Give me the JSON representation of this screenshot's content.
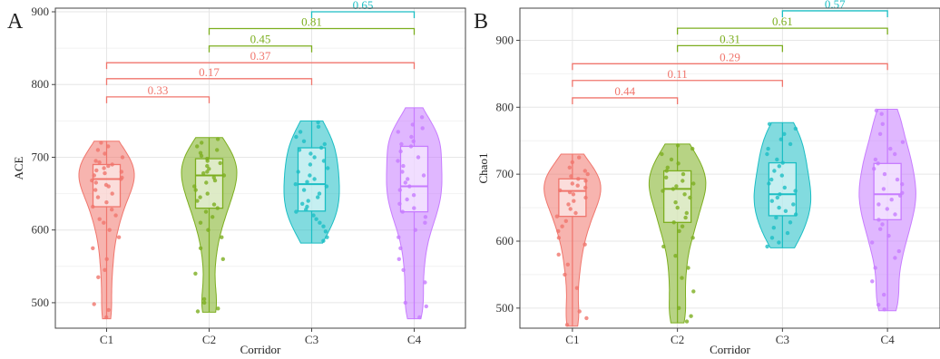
{
  "colors": {
    "C1": "#f0766d",
    "C2": "#7cae1f",
    "C3": "#1bbec4",
    "C4": "#c77cff",
    "grid": "#e6e6e6"
  },
  "chart_data": [
    {
      "type": "violin",
      "panel_label": "A",
      "xlabel": "Corridor",
      "ylabel": "ACE",
      "categories": [
        "C1",
        "C2",
        "C3",
        "C4"
      ],
      "ylim": [
        465,
        905
      ],
      "yticks": [
        500,
        600,
        700,
        800,
        900
      ],
      "grid": true,
      "series": [
        {
          "category": "C1",
          "min": 478,
          "q1": 632,
          "median": 670,
          "q3": 690,
          "max": 722,
          "points": [
            480,
            490,
            498,
            535,
            545,
            560,
            575,
            590,
            600,
            610,
            615,
            620,
            628,
            632,
            638,
            645,
            650,
            655,
            660,
            662,
            665,
            668,
            670,
            672,
            675,
            678,
            680,
            682,
            685,
            688,
            690,
            693,
            695,
            700,
            705,
            710,
            715,
            720
          ]
        },
        {
          "category": "C2",
          "min": 487,
          "q1": 630,
          "median": 675,
          "q3": 698,
          "max": 727,
          "points": [
            488,
            492,
            500,
            505,
            540,
            560,
            575,
            590,
            600,
            610,
            618,
            625,
            630,
            635,
            640,
            645,
            650,
            655,
            660,
            665,
            668,
            672,
            675,
            678,
            680,
            684,
            688,
            692,
            695,
            698,
            702,
            706,
            710,
            715,
            720,
            725
          ]
        },
        {
          "category": "C3",
          "min": 582,
          "q1": 626,
          "median": 663,
          "q3": 713,
          "max": 750,
          "points": [
            585,
            590,
            598,
            605,
            610,
            615,
            620,
            625,
            628,
            632,
            636,
            640,
            645,
            650,
            655,
            660,
            663,
            666,
            670,
            675,
            680,
            685,
            690,
            695,
            700,
            705,
            710,
            713,
            718,
            722,
            728,
            735,
            742,
            748
          ]
        },
        {
          "category": "C4",
          "min": 478,
          "q1": 625,
          "median": 660,
          "q3": 715,
          "max": 768,
          "points": [
            480,
            495,
            500,
            528,
            545,
            560,
            575,
            590,
            600,
            610,
            618,
            625,
            630,
            636,
            642,
            648,
            655,
            660,
            665,
            670,
            675,
            680,
            688,
            695,
            700,
            708,
            715,
            718,
            722,
            728,
            735,
            740,
            745,
            755
          ]
        }
      ],
      "comparisons": [
        {
          "from": "C1",
          "to": "C2",
          "label": "0.33",
          "y": 783,
          "color": "#f0766d"
        },
        {
          "from": "C1",
          "to": "C3",
          "label": "0.17",
          "y": 808,
          "color": "#f0766d"
        },
        {
          "from": "C1",
          "to": "C4",
          "label": "0.37",
          "y": 830,
          "color": "#f0766d"
        },
        {
          "from": "C2",
          "to": "C3",
          "label": "0.45",
          "y": 853,
          "color": "#7cae1f"
        },
        {
          "from": "C2",
          "to": "C4",
          "label": "0.81",
          "y": 877,
          "color": "#7cae1f"
        },
        {
          "from": "C3",
          "to": "C4",
          "label": "0.65",
          "y": 900,
          "color": "#1bbec4"
        }
      ]
    },
    {
      "type": "violin",
      "panel_label": "B",
      "xlabel": "Corridor",
      "ylabel": "Chao1",
      "categories": [
        "C1",
        "C2",
        "C3",
        "C4"
      ],
      "ylim": [
        470,
        948
      ],
      "yticks": [
        500,
        600,
        700,
        800,
        900
      ],
      "grid": true,
      "series": [
        {
          "category": "C1",
          "min": 473,
          "q1": 637,
          "median": 675,
          "q3": 693,
          "max": 730,
          "points": [
            475,
            485,
            495,
            530,
            550,
            565,
            580,
            595,
            605,
            615,
            622,
            630,
            637,
            642,
            648,
            655,
            660,
            665,
            670,
            673,
            676,
            680,
            683,
            686,
            690,
            693,
            697,
            700,
            705,
            710,
            718,
            725
          ]
        },
        {
          "category": "C2",
          "min": 478,
          "q1": 628,
          "median": 678,
          "q3": 705,
          "max": 745,
          "points": [
            480,
            488,
            500,
            525,
            545,
            560,
            578,
            592,
            605,
            615,
            622,
            628,
            635,
            642,
            650,
            658,
            665,
            670,
            675,
            678,
            682,
            686,
            690,
            695,
            700,
            705,
            710,
            716,
            722,
            730,
            738,
            743
          ]
        },
        {
          "category": "C3",
          "min": 590,
          "q1": 638,
          "median": 670,
          "q3": 717,
          "max": 777,
          "points": [
            592,
            598,
            605,
            612,
            620,
            628,
            635,
            640,
            645,
            650,
            655,
            660,
            665,
            670,
            675,
            680,
            686,
            692,
            698,
            705,
            712,
            717,
            722,
            730,
            738,
            745,
            752,
            760,
            768,
            775
          ]
        },
        {
          "category": "C4",
          "min": 496,
          "q1": 632,
          "median": 670,
          "q3": 716,
          "max": 797,
          "points": [
            498,
            505,
            520,
            540,
            560,
            575,
            585,
            598,
            608,
            618,
            625,
            632,
            640,
            648,
            655,
            662,
            668,
            672,
            678,
            685,
            692,
            700,
            708,
            716,
            722,
            730,
            738,
            748,
            760,
            775,
            790,
            795
          ]
        }
      ],
      "comparisons": [
        {
          "from": "C1",
          "to": "C2",
          "label": "0.44",
          "y": 814,
          "color": "#f0766d"
        },
        {
          "from": "C1",
          "to": "C3",
          "label": "0.11",
          "y": 840,
          "color": "#f0766d"
        },
        {
          "from": "C1",
          "to": "C4",
          "label": "0.29",
          "y": 865,
          "color": "#f0766d"
        },
        {
          "from": "C2",
          "to": "C3",
          "label": "0.31",
          "y": 892,
          "color": "#7cae1f"
        },
        {
          "from": "C2",
          "to": "C4",
          "label": "0.61",
          "y": 918,
          "color": "#7cae1f"
        },
        {
          "from": "C3",
          "to": "C4",
          "label": "0.57",
          "y": 944,
          "color": "#1bbec4"
        }
      ]
    }
  ]
}
